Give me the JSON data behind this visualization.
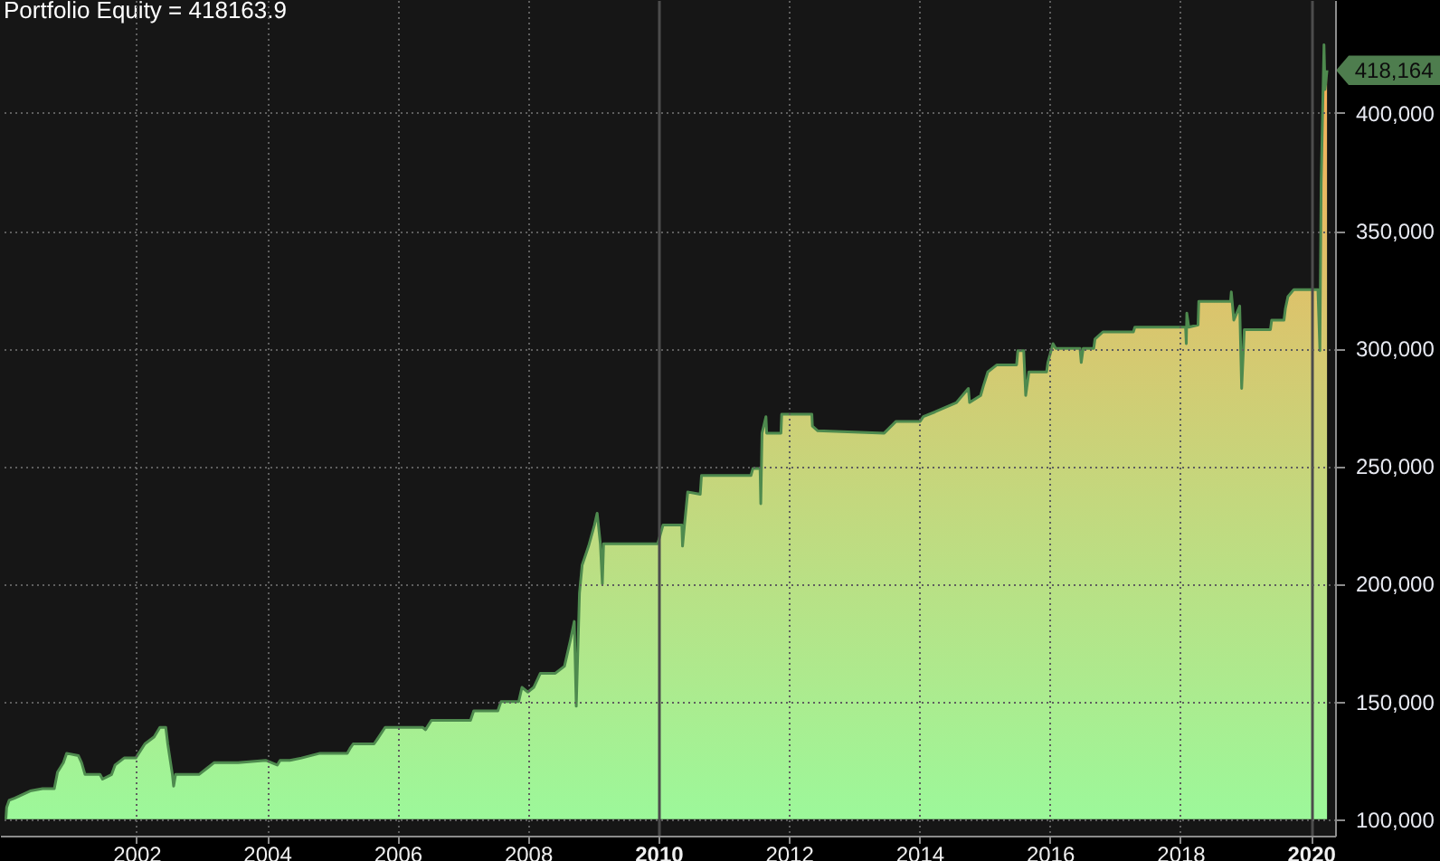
{
  "chart_data": {
    "type": "area",
    "title": "Portfolio Equity = 418163.9",
    "x": [
      "2000-01-01",
      "2000-01-05",
      "2000-01-19",
      "2000-02-21",
      "2000-05-16",
      "2000-07-24",
      "2000-09-28",
      "2000-10-16",
      "2000-11-18",
      "2000-12-06",
      "2001-02-10",
      "2001-02-28",
      "2001-03-19",
      "2001-06-11",
      "2001-06-25",
      "2001-08-15",
      "2001-09-03",
      "2001-10-24",
      "2001-12-28",
      "2002-02-17",
      "2002-04-10",
      "2002-05-12",
      "2002-06-14",
      "2002-06-25",
      "2002-07-21",
      "2002-07-28",
      "2002-08-08",
      "2002-12-17",
      "2003-02-06",
      "2003-03-11",
      "2003-07-24",
      "2003-12-25",
      "2004-02-28",
      "2004-03-15",
      "2004-05-09",
      "2004-07-13",
      "2004-10-24",
      "2005-03-26",
      "2005-04-10",
      "2005-04-28",
      "2005-08-23",
      "2005-09-10",
      "2005-10-24",
      "2006-05-23",
      "2006-06-07",
      "2006-07-10",
      "2007-02-14",
      "2007-03-04",
      "2007-07-17",
      "2007-08-04",
      "2007-11-11",
      "2007-11-29",
      "2008-01-01",
      "2008-02-03",
      "2008-03-11",
      "2008-06-03",
      "2008-07-24",
      "2008-08-08",
      "2008-08-26",
      "2008-09-17",
      "2008-09-28",
      "2008-10-16",
      "2008-10-31",
      "2008-12-06",
      "2009-01-08",
      "2009-01-23",
      "2009-02-10",
      "2009-02-21",
      "2009-02-28",
      "2009-12-28",
      "2010-01-27",
      "2010-05-12",
      "2010-05-16",
      "2010-05-27",
      "2010-06-14",
      "2010-08-23",
      "2010-08-30",
      "2011-06-03",
      "2011-06-14",
      "2011-07-24",
      "2011-07-28",
      "2011-08-04",
      "2011-08-26",
      "2011-08-30",
      "2011-11-18",
      "2011-11-22",
      "2012-05-09",
      "2012-05-12",
      "2012-06-11",
      "2013-06-18",
      "2013-08-23",
      "2014-01-05",
      "2014-01-23",
      "2014-03-29",
      "2014-07-28",
      "2014-10-02",
      "2014-10-09",
      "2014-12-10",
      "2014-12-25",
      "2015-01-19",
      "2015-03-11",
      "2015-06-29",
      "2015-07-06",
      "2015-08-08",
      "2015-08-19",
      "2015-09-06",
      "2015-12-14",
      "2015-12-21",
      "2016-01-19",
      "2016-02-03",
      "2016-06-18",
      "2016-06-25",
      "2016-07-06",
      "2016-09-03",
      "2016-09-10",
      "2016-10-24",
      "2017-04-13",
      "2017-04-21",
      "2018-01-30",
      "2018-02-03",
      "2018-02-06",
      "2018-02-17",
      "2018-04-10",
      "2018-04-14",
      "2018-10-09",
      "2018-10-13",
      "2018-10-27",
      "2018-11-29",
      "2018-12-10",
      "2018-12-25",
      "2019-05-20",
      "2019-05-27",
      "2019-08-04",
      "2019-08-12",
      "2019-08-26",
      "2019-09-28",
      "2020-02-10",
      "2020-02-21",
      "2020-02-28",
      "2020-03-15",
      "2020-03-21",
      "2020-04-01"
    ],
    "series": [
      {
        "color": "#9cf89a",
        "values": [
          100000,
          105000,
          108000,
          109000,
          112000,
          113000,
          113000,
          120000,
          124000,
          128000,
          127000,
          124000,
          119000,
          119000,
          117000,
          119000,
          123000,
          126000,
          126000,
          132000,
          135000,
          139000,
          139000,
          132000,
          119000,
          114000,
          119000,
          119000,
          122000,
          124000,
          124000,
          125000,
          123000,
          125000,
          125000,
          126000,
          128000,
          128000,
          130000,
          132000,
          132000,
          134000,
          139000,
          139000,
          138000,
          142000,
          142000,
          146000,
          146000,
          150000,
          150000,
          156000,
          154000,
          156000,
          162000,
          162000,
          165000,
          170000,
          176000,
          184000,
          148000,
          196000,
          208000,
          216000,
          225000,
          230000,
          217000,
          200000,
          217000,
          217000,
          225000,
          225000,
          216000,
          225000,
          239000,
          238000,
          246000,
          246000,
          249000,
          249000,
          234000,
          264000,
          271000,
          264000,
          264000,
          272000,
          272000,
          267000,
          265000,
          264000,
          269000,
          269000,
          271000,
          273000,
          277000,
          283000,
          277000,
          280000,
          284000,
          290000,
          293000,
          293000,
          299000,
          299000,
          280000,
          290000,
          290000,
          294000,
          302000,
          300000,
          300000,
          294000,
          300000,
          300000,
          304000,
          307000,
          307000,
          309000,
          309000,
          302000,
          315000,
          309000,
          310000,
          320000,
          320000,
          324000,
          312000,
          318000,
          283000,
          308000,
          308000,
          312000,
          312000,
          317000,
          322000,
          325000,
          325000,
          299000,
          370000,
          429000,
          410000,
          418163.9
        ]
      }
    ],
    "xlim": [
      "1999-11-29",
      "2020-05-16"
    ],
    "ylim": [
      93000,
      448000
    ],
    "xticks": [
      "2002",
      "2004",
      "2006",
      "2008",
      "2010",
      "2012",
      "2014",
      "2016",
      "2018",
      "2020"
    ],
    "yticks": [
      {
        "value": 100000,
        "label": "100,000"
      },
      {
        "value": 150000,
        "label": "150,000"
      },
      {
        "value": 200000,
        "label": "200,000"
      },
      {
        "value": 250000,
        "label": "250,000"
      },
      {
        "value": 300000,
        "label": "300,000"
      },
      {
        "value": 350000,
        "label": "350,000"
      },
      {
        "value": 400000,
        "label": "400,000"
      }
    ],
    "grid": true,
    "annotations": [
      {
        "text": "418,164",
        "x": "2020-04-01",
        "y": 418164
      }
    ]
  }
}
